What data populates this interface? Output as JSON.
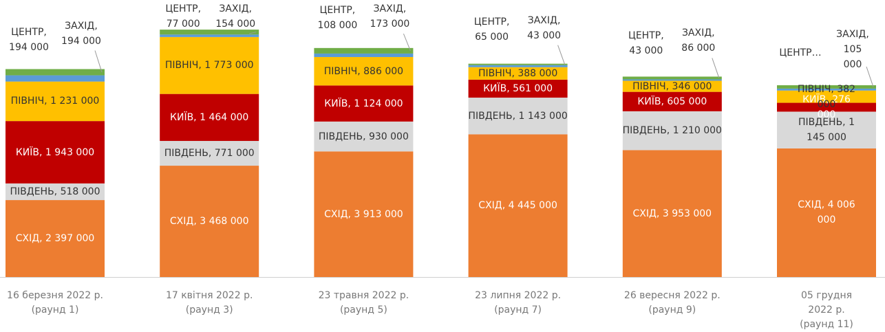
{
  "chart_data": {
    "type": "stacked_bar",
    "categories": [
      "16 березня 2022 р.\n(раунд 1)",
      "17 квітня 2022 р.\n(раунд 3)",
      "23 травня 2022 р.\n(раунд 5)",
      "23 липня 2022 р.\n(раунд 7)",
      "26 вересня 2022 р.\n(раунд 9)",
      "05 грудня 2022 р.\n(раунд 11)"
    ],
    "ylim": [
      0,
      8000000
    ],
    "series": [
      {
        "name": "СХІД",
        "color": "#ED7D31",
        "label_color": "#ffffff",
        "label_position": "inside",
        "values": [
          2397000,
          3468000,
          3913000,
          4445000,
          3953000,
          4006000
        ],
        "value_labels": [
          "СХІД, 2 397 000",
          "СХІД, 3 468 000",
          "СХІД, 3 913 000",
          "СХІД, 4 445 000",
          "СХІД, 3 953 000",
          "СХІД, 4 006 000"
        ]
      },
      {
        "name": "ПІВДЕНЬ",
        "color": "#D9D9D9",
        "label_color": "#333333",
        "label_position": "inside",
        "values": [
          518000,
          771000,
          930000,
          1143000,
          1210000,
          1145000
        ],
        "value_labels": [
          "ПІВДЕНЬ, 518 000",
          "ПІВДЕНЬ, 771 000",
          "ПІВДЕНЬ, 930 000",
          "ПІВДЕНЬ, 1 143 000",
          "ПІВДЕНЬ, 1 210 000",
          "ПІВДЕНЬ, 1 145 000"
        ]
      },
      {
        "name": "КИЇВ",
        "color": "#C00000",
        "label_color": "#ffffff",
        "label_position": "inside",
        "values": [
          1943000,
          1464000,
          1124000,
          561000,
          605000,
          276000
        ],
        "value_labels": [
          "КИЇВ, 1 943 000",
          "КИЇВ, 1 464 000",
          "КИЇВ, 1 124 000",
          "КИЇВ, 561 000",
          "КИЇВ, 605 000",
          "КИЇВ, 276 000"
        ]
      },
      {
        "name": "ПІВНІЧ",
        "color": "#FFC000",
        "label_color": "#333333",
        "label_position": "inside",
        "values": [
          1231000,
          1773000,
          886000,
          388000,
          346000,
          382000
        ],
        "value_labels": [
          "ПІВНІЧ, 1 231 000",
          "ПІВНІЧ, 1 773 000",
          "ПІВНІЧ, 886 000",
          "ПІВНІЧ, 388 000",
          "ПІВНІЧ, 346 000",
          "ПІВНІЧ, 382 000"
        ]
      },
      {
        "name": "ЦЕНТР",
        "color": "#5B9BD5",
        "label_color": "#333333",
        "label_position": "outside-left",
        "values": [
          194000,
          77000,
          108000,
          65000,
          43000,
          60000
        ],
        "value_labels": [
          "ЦЕНТР,\n194 000",
          "ЦЕНТР,\n77 000",
          "ЦЕНТР,\n108 000",
          "ЦЕНТР,\n65 000",
          "ЦЕНТР,\n43 000",
          "ЦЕНТР…"
        ]
      },
      {
        "name": "ЗАХІД",
        "color": "#70AD47",
        "label_color": "#333333",
        "label_position": "outside-right",
        "values": [
          194000,
          154000,
          173000,
          43000,
          86000,
          105000
        ],
        "value_labels": [
          "ЗАХІД,\n194 000",
          "ЗАХІД,\n154 000",
          "ЗАХІД,\n173 000",
          "ЗАХІД,\n43 000",
          "ЗАХІД,\n86 000",
          "ЗАХІД,\n105 000"
        ]
      }
    ]
  }
}
